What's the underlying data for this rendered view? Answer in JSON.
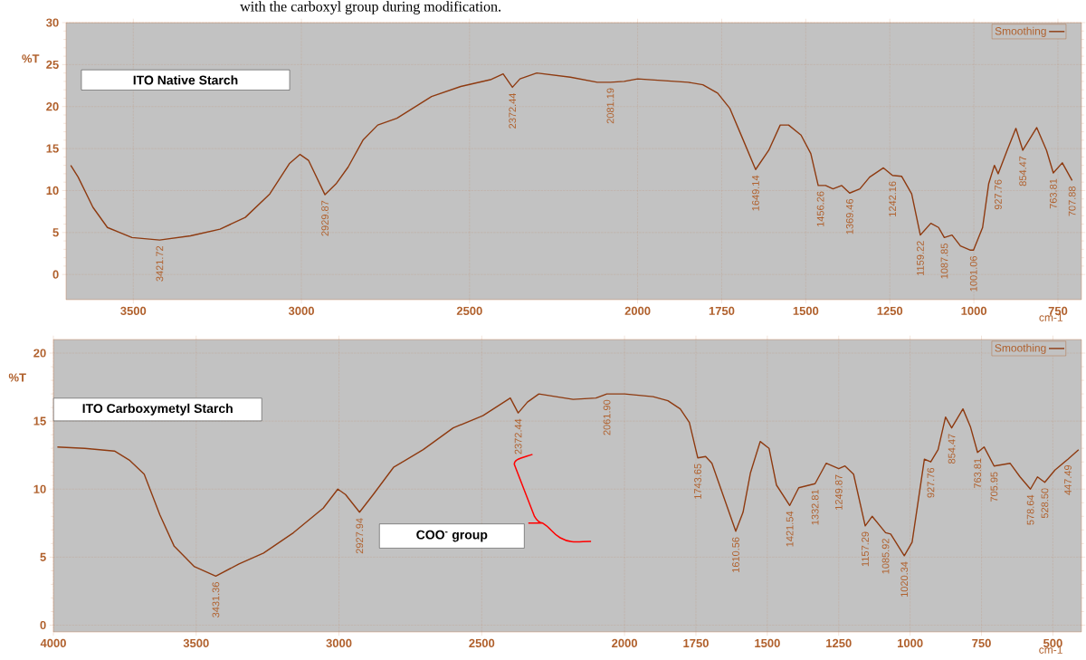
{
  "chart_data": [
    {
      "type": "line",
      "title": "ITO Native Starch",
      "xlabel": "cm-1",
      "ylabel": "%T",
      "xlim": [
        3700,
        680
      ],
      "ylim": [
        -3,
        30
      ],
      "xticks": [
        3500,
        3000,
        2500,
        2000,
        1750,
        1500,
        1250,
        1000,
        750
      ],
      "yticks": [
        0,
        5,
        10,
        15,
        20,
        25,
        30
      ],
      "grid": true,
      "legend": "top right",
      "marker": "none",
      "line_style": "solid",
      "series": [
        {
          "name": "Smoothing",
          "color": "#8e3a10",
          "x": [
            3686,
            3664,
            3620,
            3577,
            3504,
            3421.72,
            3330,
            3242,
            3167,
            3094,
            3036,
            3004,
            2979,
            2929.87,
            2897,
            2861,
            2817,
            2773,
            2716,
            2613,
            2526,
            2438,
            2400,
            2372.44,
            2350,
            2300,
            2200,
            2120,
            2081.19,
            2040,
            2000,
            1850,
            1806,
            1762,
            1726,
            1690,
            1649.14,
            1610,
            1576,
            1551,
            1514,
            1485,
            1463,
            1441,
            1419,
            1393,
            1369.46,
            1339,
            1310,
            1269,
            1242.16,
            1215,
            1185,
            1159.22,
            1128,
            1105,
            1087.85,
            1065,
            1040,
            1010,
            1001.06,
            974,
            956,
            939,
            927.76,
            901,
            875,
            854.47,
            813,
            784,
            763.81,
            737,
            707.88
          ],
          "values": [
            13.0,
            11.6,
            8.0,
            5.6,
            4.4,
            4.1,
            4.6,
            5.4,
            6.8,
            9.6,
            13.2,
            14.3,
            13.6,
            9.5,
            10.8,
            12.8,
            16.0,
            17.8,
            18.6,
            21.2,
            22.4,
            23.2,
            23.9,
            22.3,
            23.3,
            24.0,
            23.5,
            22.9,
            22.9,
            23.0,
            23.3,
            22.9,
            22.6,
            21.6,
            19.8,
            16.4,
            12.5,
            14.8,
            17.8,
            17.8,
            16.6,
            14.4,
            10.6,
            10.6,
            10.2,
            10.6,
            9.7,
            10.2,
            11.6,
            12.7,
            11.8,
            11.7,
            9.6,
            4.7,
            6.1,
            5.6,
            4.4,
            4.7,
            3.4,
            2.9,
            2.9,
            5.6,
            10.8,
            13.0,
            12.0,
            14.8,
            17.4,
            14.8,
            17.5,
            14.8,
            12.1,
            13.3,
            11.2
          ]
        }
      ],
      "annotations": [
        "with the carboxyl group during modification.",
        {
          "text": "3421.72",
          "x": 3421.72,
          "y": 4.1
        },
        {
          "text": "2929.87",
          "x": 2929.87,
          "y": 9.5
        },
        {
          "text": "2372.44",
          "x": 2372.44,
          "y": 22.3
        },
        {
          "text": "2081.19",
          "x": 2081.19,
          "y": 22.9
        },
        {
          "text": "1649.14",
          "x": 1649.14,
          "y": 12.5
        },
        {
          "text": "1456.26",
          "x": 1456.26,
          "y": 10.6
        },
        {
          "text": "1369.46",
          "x": 1369.46,
          "y": 9.7
        },
        {
          "text": "1242.16",
          "x": 1242.16,
          "y": 11.8
        },
        {
          "text": "1159.22",
          "x": 1159.22,
          "y": 4.7
        },
        {
          "text": "1087.85",
          "x": 1087.85,
          "y": 4.4
        },
        {
          "text": "1001.06",
          "x": 1001.06,
          "y": 2.9
        },
        {
          "text": "927.76",
          "x": 927.76,
          "y": 12.0
        },
        {
          "text": "854.47",
          "x": 854.47,
          "y": 14.8
        },
        {
          "text": "763.81",
          "x": 763.81,
          "y": 12.1
        },
        {
          "text": "707.88",
          "x": 707.88,
          "y": 11.2
        }
      ]
    },
    {
      "type": "line",
      "title": "ITO Carboxymetyl Starch",
      "xlabel": "cm-1",
      "ylabel": "%T",
      "xlim": [
        4000,
        400
      ],
      "ylim": [
        -0.5,
        21
      ],
      "xticks": [
        4000,
        3500,
        3000,
        2500,
        2000,
        1750,
        1500,
        1250,
        1000,
        750,
        500
      ],
      "yticks": [
        0,
        5,
        10,
        15,
        20
      ],
      "grid": true,
      "legend": "top right",
      "marker": "none",
      "line_style": "solid",
      "series": [
        {
          "name": "Smoothing",
          "color": "#8e3a10",
          "x": [
            3986,
            3890,
            3786,
            3732,
            3682,
            3627,
            3577,
            3506,
            3431.36,
            3350,
            3264,
            3159,
            3055,
            3004,
            2977,
            2927.94,
            2880,
            2809,
            2705,
            2600,
            2496,
            2400,
            2372.44,
            2340,
            2300,
            2180,
            2100,
            2061.9,
            2000,
            1900,
            1848,
            1805,
            1773,
            1743.65,
            1716,
            1694,
            1659,
            1610.56,
            1585,
            1559,
            1525,
            1494,
            1468,
            1421.54,
            1390,
            1332.81,
            1294,
            1249.87,
            1228,
            1198,
            1157.29,
            1133,
            1085.92,
            1068,
            1020.34,
            993,
            950,
            927.76,
            902,
            876,
            854.47,
            815,
            789,
            763.81,
            741,
            705.95,
            650,
            615,
            578.64,
            554,
            528.5,
            493,
            447.49,
            410
          ],
          "values": [
            13.1,
            13.0,
            12.8,
            12.1,
            11.1,
            8.1,
            5.8,
            4.3,
            3.6,
            4.5,
            5.3,
            6.8,
            8.6,
            10.0,
            9.6,
            8.3,
            9.6,
            11.6,
            12.9,
            14.5,
            15.4,
            16.7,
            15.6,
            16.4,
            17.0,
            16.6,
            16.7,
            17.0,
            17.0,
            16.8,
            16.5,
            15.9,
            14.9,
            12.3,
            12.4,
            11.9,
            9.8,
            6.9,
            8.3,
            11.2,
            13.5,
            13.0,
            10.3,
            8.8,
            10.1,
            10.4,
            11.9,
            11.5,
            11.7,
            11.1,
            7.3,
            8.0,
            6.8,
            6.7,
            5.1,
            6.1,
            12.2,
            12.0,
            12.9,
            15.3,
            14.5,
            15.9,
            14.6,
            12.7,
            13.1,
            11.7,
            11.9,
            10.9,
            10.0,
            10.9,
            10.5,
            11.4,
            12.2,
            12.9
          ]
        }
      ],
      "annotations": [
        "COO$^{-}$ group",
        {
          "text": "3431.36",
          "x": 3431.36,
          "y": 3.6
        },
        {
          "text": "2927.94",
          "x": 2927.94,
          "y": 8.3
        },
        {
          "text": "2372.44",
          "x": 2372.44,
          "y": 15.6
        },
        {
          "text": "2061.90",
          "x": 2061.9,
          "y": 17.0
        },
        {
          "text": "1743.65",
          "x": 1743.65,
          "y": 12.3
        },
        {
          "text": "1610.56",
          "x": 1610.56,
          "y": 6.9
        },
        {
          "text": "1421.54",
          "x": 1421.54,
          "y": 8.8
        },
        {
          "text": "1332.81",
          "x": 1332.81,
          "y": 10.4
        },
        {
          "text": "1249.87",
          "x": 1249.87,
          "y": 11.5
        },
        {
          "text": "1157.29",
          "x": 1157.29,
          "y": 7.3
        },
        {
          "text": "1085.92",
          "x": 1085.92,
          "y": 6.8
        },
        {
          "text": "1020.34",
          "x": 1020.34,
          "y": 5.1
        },
        {
          "text": "927.76",
          "x": 927.76,
          "y": 12.0
        },
        {
          "text": "854.47",
          "x": 854.47,
          "y": 14.5
        },
        {
          "text": "763.81",
          "x": 763.81,
          "y": 12.7
        },
        {
          "text": "705.95",
          "x": 705.95,
          "y": 11.7
        },
        {
          "text": "578.64",
          "x": 578.64,
          "y": 10.0
        },
        {
          "text": "528.50",
          "x": 528.5,
          "y": 10.5
        },
        {
          "text": "447.49",
          "x": 447.49,
          "y": 12.2
        }
      ]
    }
  ]
}
